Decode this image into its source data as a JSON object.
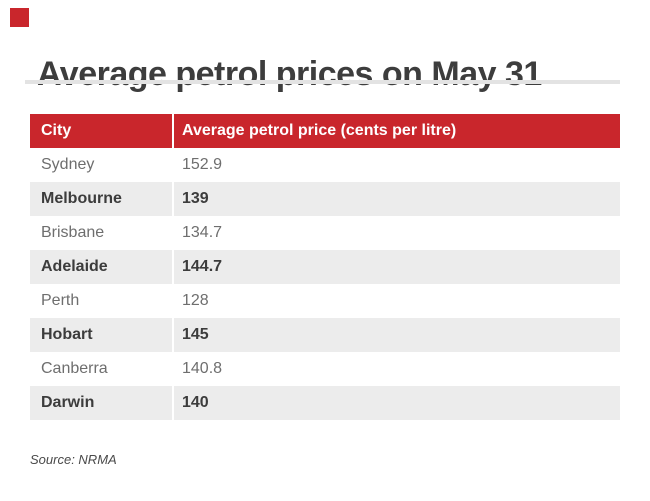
{
  "page": {
    "title": "Average petrol prices on May 31",
    "source": "Source: NRMA"
  },
  "colors": {
    "accent_red": "#c9262c",
    "row_stripe": "#ececec",
    "title_text": "#3d3d3d",
    "regular_row_text": "#6e6e6e",
    "bold_row_text": "#3c3c3c",
    "divider": "#e3e3e3"
  },
  "table": {
    "columns": {
      "city": "City",
      "price": "Average petrol price (cents per litre)"
    },
    "rows": [
      {
        "city": "Sydney",
        "price": "152.9"
      },
      {
        "city": "Melbourne",
        "price": "139"
      },
      {
        "city": "Brisbane",
        "price": "134.7"
      },
      {
        "city": "Adelaide",
        "price": "144.7"
      },
      {
        "city": "Perth",
        "price": "128"
      },
      {
        "city": "Hobart",
        "price": "145"
      },
      {
        "city": "Canberra",
        "price": "140.8"
      },
      {
        "city": "Darwin",
        "price": "140"
      }
    ]
  },
  "chart_data": {
    "type": "table",
    "title": "Average petrol prices on May 31",
    "columns": [
      "City",
      "Average petrol price (cents per litre)"
    ],
    "rows": [
      [
        "Sydney",
        152.9
      ],
      [
        "Melbourne",
        139
      ],
      [
        "Brisbane",
        134.7
      ],
      [
        "Adelaide",
        144.7
      ],
      [
        "Perth",
        128
      ],
      [
        "Hobart",
        145
      ],
      [
        "Canberra",
        140.8
      ],
      [
        "Darwin",
        140
      ]
    ],
    "source": "Source: NRMA",
    "layout": {
      "header_background": "#c9262c",
      "zebra_striping": true,
      "striped_rows_bold": true
    }
  }
}
